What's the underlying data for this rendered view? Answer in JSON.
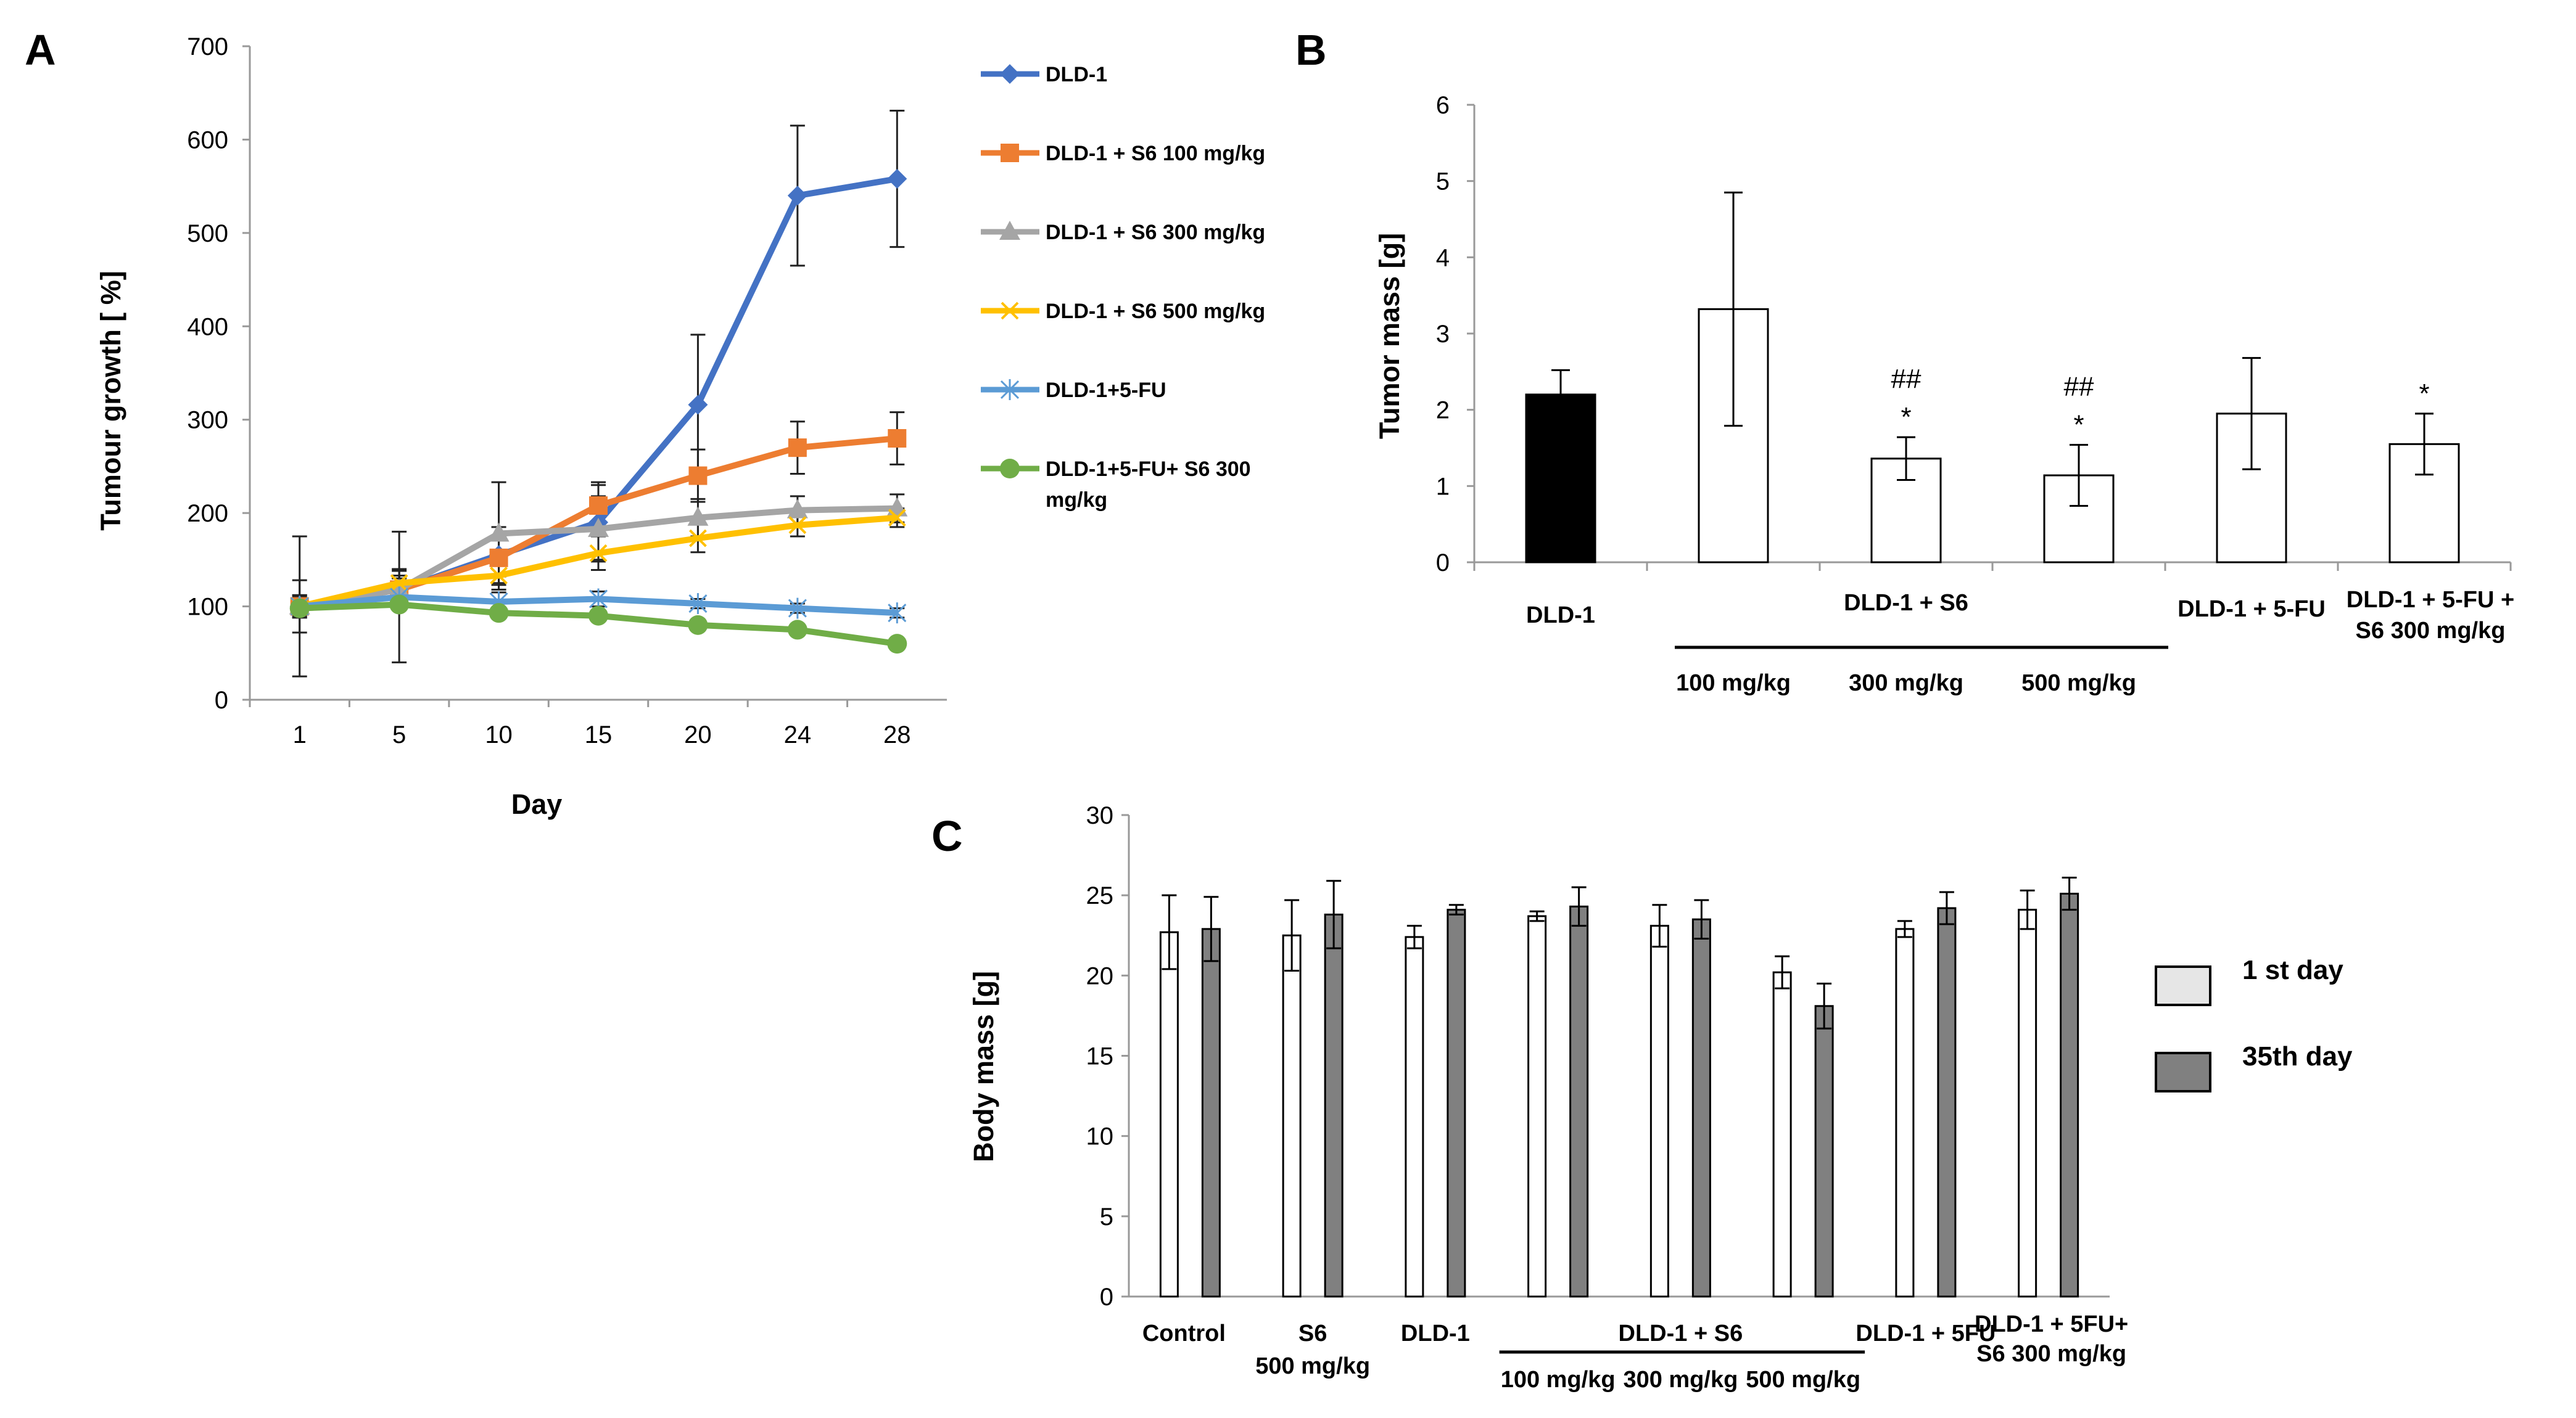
{
  "chart_data": [
    {
      "panel": "A",
      "type": "line",
      "xlabel": "Day",
      "ylabel": "Tumour  growth  [ %]",
      "categories": [
        "1",
        "5",
        "10",
        "15",
        "20",
        "24",
        "28"
      ],
      "ylim": [
        0,
        700
      ],
      "yticks": [
        "0",
        "100",
        "200",
        "300",
        "400",
        "500",
        "600",
        "700"
      ],
      "series": [
        {
          "name": "DLD-1",
          "color": "#4472C4",
          "marker": "diamond",
          "values": [
            100,
            118,
            155,
            190,
            316,
            540,
            558
          ],
          "errors": [
            28,
            12,
            30,
            40,
            75,
            75,
            73
          ]
        },
        {
          "name": "DLD-1 +  S6 100 mg/kg",
          "color": "#ED7D31",
          "marker": "square",
          "values": [
            100,
            118,
            152,
            208,
            240,
            270,
            280
          ],
          "errors": [
            12,
            15,
            20,
            25,
            28,
            28,
            28
          ]
        },
        {
          "name": "DLD-1 +  S6 300 mg/kg",
          "color": "#A5A5A5",
          "marker": "triangle",
          "values": [
            100,
            118,
            178,
            183,
            195,
            203,
            205
          ],
          "errors": [
            12,
            20,
            55,
            35,
            20,
            15,
            15
          ]
        },
        {
          "name": "DLD-1 +  S6 500 mg/kg",
          "color": "#FFC000",
          "marker": "x",
          "values": [
            100,
            125,
            133,
            157,
            173,
            187,
            195
          ],
          "errors": [
            10,
            15,
            15,
            18,
            15,
            12,
            10
          ]
        },
        {
          "name": "DLD-1+5-FU",
          "color": "#5B9BD5",
          "marker": "star",
          "values": [
            100,
            110,
            105,
            108,
            103,
            98,
            93
          ],
          "errors": [
            75,
            70,
            10,
            8,
            5,
            5,
            5
          ]
        },
        {
          "name": "DLD-1+5-FU+  S6 300 mg/kg",
          "legend_lines": [
            "DLD-1+5-FU+  S6 300",
            "mg/kg"
          ],
          "color": "#70AD47",
          "marker": "circle",
          "values": [
            98,
            102,
            93,
            90,
            80,
            75,
            60
          ],
          "errors": [
            5,
            5,
            5,
            5,
            5,
            5,
            5
          ]
        }
      ]
    },
    {
      "panel": "B",
      "type": "bar",
      "ylabel": "Tumor mass [g]",
      "ylim": [
        0,
        6
      ],
      "yticks": [
        "0",
        "1",
        "2",
        "3",
        "4",
        "5",
        "6"
      ],
      "values": [
        2.2,
        3.32,
        1.36,
        1.14,
        1.95,
        1.55
      ],
      "errors": [
        0.32,
        1.53,
        0.28,
        0.4,
        0.73,
        0.4
      ],
      "fills": [
        "#000000",
        "#ffffff",
        "#ffffff",
        "#ffffff",
        "#ffffff",
        "#ffffff"
      ],
      "significance": [
        {
          "bar": 2,
          "hash": "##",
          "star": "*"
        },
        {
          "bar": 3,
          "hash": "##",
          "star": "*"
        },
        {
          "bar": 5,
          "hash": "",
          "star": "*"
        }
      ],
      "group_labels": [
        {
          "lines": [
            "DLD-1"
          ]
        },
        {
          "lines": [
            "DLD-1 + S6"
          ]
        },
        {
          "lines": [
            "DLD-1 + 5-FU"
          ]
        },
        {
          "lines": [
            "DLD-1 + 5-FU +",
            "S6 300 mg/kg"
          ]
        }
      ],
      "dose_labels": [
        "100 mg/kg",
        "300 mg/kg",
        "500 mg/kg"
      ]
    },
    {
      "panel": "C",
      "type": "bar",
      "ylabel": "Body mass [g]",
      "ylim": [
        0,
        30
      ],
      "yticks": [
        "0",
        "5",
        "10",
        "15",
        "20",
        "25",
        "30"
      ],
      "series": [
        {
          "name": "1 st day",
          "color": "#ffffff",
          "values": [
            22.7,
            22.5,
            22.4,
            23.7,
            23.1,
            20.2,
            22.9,
            24.1
          ],
          "errors": [
            2.3,
            2.2,
            0.7,
            0.3,
            1.3,
            1.0,
            0.5,
            1.2
          ]
        },
        {
          "name": "35th day",
          "color": "#808080",
          "values": [
            22.9,
            23.8,
            24.1,
            24.3,
            23.5,
            18.1,
            24.2,
            25.1
          ],
          "errors": [
            2.0,
            2.1,
            0.3,
            1.2,
            1.2,
            1.4,
            1.0,
            1.0
          ]
        }
      ],
      "group_labels": [
        {
          "lines": [
            "Control"
          ]
        },
        {
          "lines": [
            "S6",
            "500 mg/kg"
          ]
        },
        {
          "lines": [
            "DLD-1"
          ]
        },
        {
          "lines": [
            "DLD-1 + S6"
          ]
        },
        {
          "lines": [
            "DLD-1 + 5FU"
          ]
        },
        {
          "lines": [
            "DLD-1 + 5FU+",
            "S6 300 mg/kg"
          ]
        }
      ],
      "dose_labels": [
        "100 mg/kg",
        "300 mg/kg",
        "500 mg/kg"
      ]
    }
  ],
  "panel_letters": [
    "A",
    "B",
    "C"
  ]
}
